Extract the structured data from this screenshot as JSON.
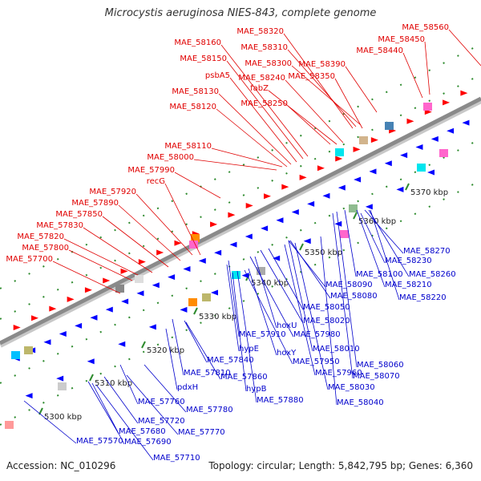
{
  "title": "Microcystis aeruginosa NIES-843, complete genome",
  "footer": {
    "accession": "Accession: NC_010296",
    "summary": "Topology: circular; Length: 5,842,795 bp; Genes: 6,360"
  },
  "colors": {
    "forward_label": "#e00000",
    "reverse_label": "#0000cc",
    "forward_feature": "#ff0000",
    "reverse_feature": "#0000ff",
    "backbone": "#8a8a8a",
    "tick": "#2e8b2e"
  },
  "ticks": [
    "5300 kbp",
    "5310 kbp",
    "5320 kbp",
    "5330 kbp",
    "5340 kbp",
    "5350 kbp",
    "5360 kbp",
    "5370 kbp"
  ],
  "forward_genes": [
    "MAE_57700",
    "MAE_57800",
    "MAE_57820",
    "MAE_57830",
    "MAE_57850",
    "MAE_57890",
    "MAE_57920",
    "recG",
    "MAE_57990",
    "MAE_58000",
    "MAE_58110",
    "MAE_58120",
    "MAE_58130",
    "psbA5",
    "MAE_58150",
    "MAE_58160",
    "MAE_58240",
    "fabZ",
    "MAE_58250",
    "MAE_58320",
    "MAE_58310",
    "MAE_58300",
    "MAE_58350",
    "MAE_58390",
    "MAE_58440",
    "MAE_58450",
    "MAE_58560"
  ],
  "reverse_genes": [
    "MAE_58270",
    "MAE_58230",
    "MAE_58260",
    "MAE_58100",
    "MAE_58210",
    "MAE_58090",
    "MAE_58220",
    "MAE_58080",
    "MAE_58050",
    "MAE_58020",
    "hoxU",
    "MAE_57980",
    "MAE_57910",
    "MAE_58010",
    "hypE",
    "hoxY",
    "MAE_57950",
    "MAE_58060",
    "MAE_57840",
    "MAE_57960",
    "MAE_58070",
    "MAE_57810",
    "MAE_57860",
    "MAE_58030",
    "hypB",
    "MAE_57880",
    "MAE_58040",
    "pdxH",
    "MAE_57760",
    "MAE_57780",
    "MAE_57720",
    "MAE_57770",
    "MAE_57680",
    "MAE_57570",
    "MAE_57690",
    "MAE_57710"
  ]
}
